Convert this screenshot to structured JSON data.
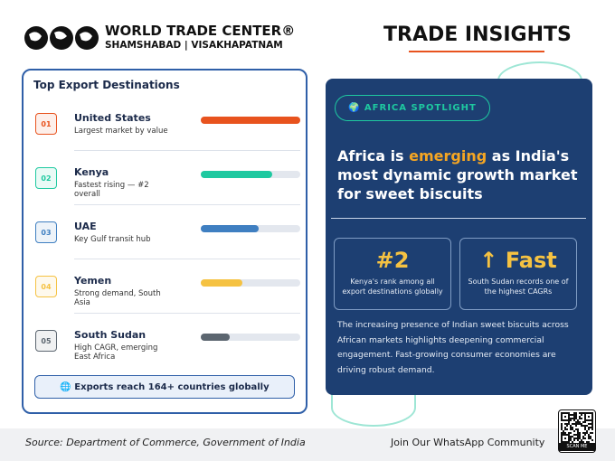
{
  "header": {
    "brand": "WORLD TRADE CENTER®",
    "locations": "SHAMSHABAD | VISAKHAPATNAM",
    "title": "TRADE INSIGHTS"
  },
  "left_panel": {
    "title": "Top Export Destinations",
    "rows": [
      {
        "rank": "01",
        "name": "United States",
        "desc": "Largest market by value",
        "bar": 100,
        "color": "#e8531e"
      },
      {
        "rank": "02",
        "name": "Kenya",
        "desc": "Fastest rising — #2 overall",
        "bar": 72,
        "color": "#1ec9a0"
      },
      {
        "rank": "03",
        "name": "UAE",
        "desc": "Key Gulf transit hub",
        "bar": 58,
        "color": "#3f7fc1"
      },
      {
        "rank": "04",
        "name": "Yemen",
        "desc": "Strong demand, South Asia",
        "bar": 42,
        "color": "#f5c242"
      },
      {
        "rank": "05",
        "name": "South Sudan",
        "desc": "High CAGR, emerging East Africa",
        "bar": 29,
        "color": "#5c6670"
      }
    ],
    "footer": "🌐 Exports reach 164+ countries globally"
  },
  "right_panel": {
    "badge": "🌍 AFRICA SPOTLIGHT",
    "headline": [
      "Africa is ",
      "emerging",
      " as India's most dynamic growth market for sweet biscuits"
    ],
    "stats": [
      {
        "big": "#2",
        "small": "Kenya's rank among all export destinations globally"
      },
      {
        "big": "↑ Fast",
        "small": "South Sudan records one of the highest CAGRs"
      }
    ],
    "body": "The increasing presence of Indian sweet biscuits across African markets highlights deepening commercial engagement. Fast-growing consumer economies are driving robust demand."
  },
  "footer": {
    "source": "Source: Department of Commerce, Government of India",
    "cta": "Join Our WhatsApp Community",
    "qr": "SCAN ME"
  }
}
